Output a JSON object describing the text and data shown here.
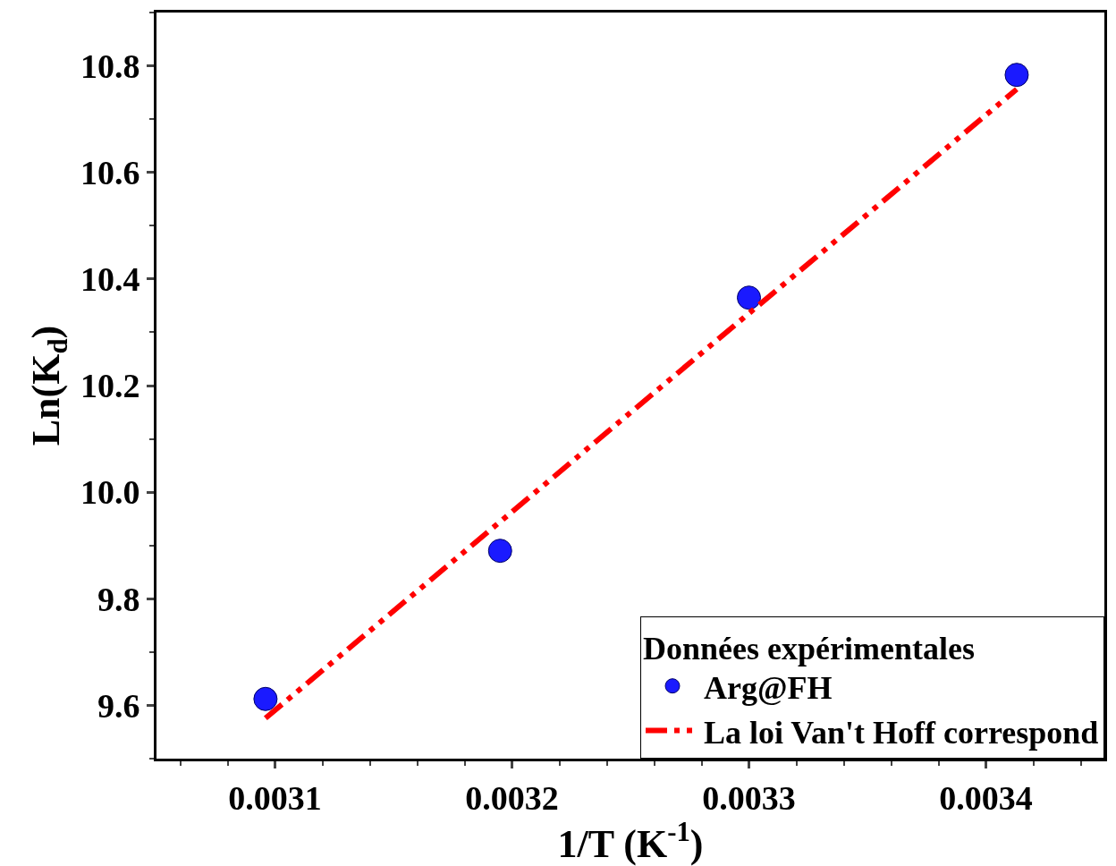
{
  "chart_data": {
    "type": "scatter",
    "xlabel": "1/T (K$^{-1}$)",
    "ylabel": "Ln(K$_{d}$)",
    "legend_title": "Données expérimentales",
    "xlim": [
      0.00305,
      0.00345
    ],
    "xticks": [
      0.0031,
      0.0032,
      0.0033,
      0.0034
    ],
    "ylim": [
      9.5,
      10.9
    ],
    "yticks": [
      9.6,
      9.8,
      {
        "value": 10.0,
        "label": "10.0"
      },
      10.2,
      10.4,
      10.6,
      10.8
    ],
    "series": [
      {
        "name": "Arg@FH",
        "color": "#1a1aff",
        "marker": "circle",
        "x": [
          0.003096,
          0.003195,
          0.0033,
          0.003413
        ],
        "values": [
          9.612,
          9.89,
          10.365,
          10.783
        ]
      },
      {
        "name": "La loi Van't Hoff correspond",
        "type": "line",
        "color": "#ff0000",
        "marker": "none",
        "line_style": "dashed",
        "x": [
          0.003096,
          0.003413
        ],
        "values": [
          9.576,
          10.756
        ]
      }
    ],
    "legend": "bottom right"
  }
}
